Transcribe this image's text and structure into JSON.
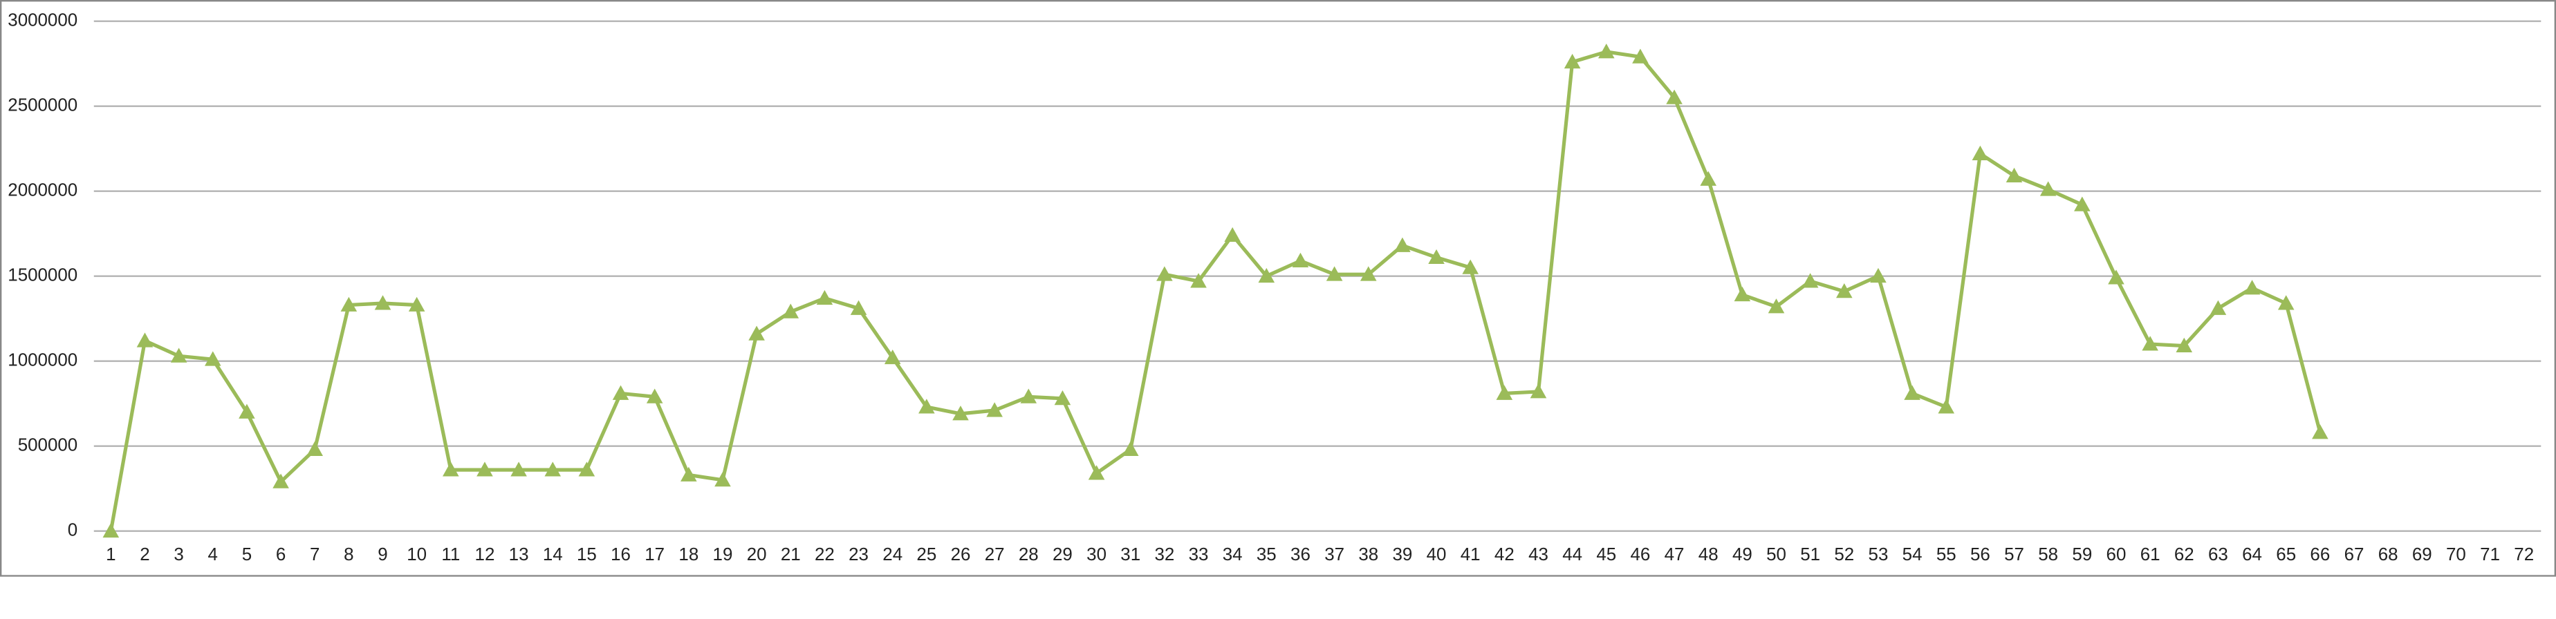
{
  "chart_data": {
    "type": "line",
    "categories": [
      1,
      2,
      3,
      4,
      5,
      6,
      7,
      8,
      9,
      10,
      11,
      12,
      13,
      14,
      15,
      16,
      17,
      18,
      19,
      20,
      21,
      22,
      23,
      24,
      25,
      26,
      27,
      28,
      29,
      30,
      31,
      32,
      33,
      34,
      35,
      36,
      37,
      38,
      39,
      40,
      41,
      42,
      43,
      44,
      45,
      46,
      47,
      48,
      49,
      50,
      51,
      52,
      53,
      54,
      55,
      56,
      57,
      58,
      59,
      60,
      61,
      62,
      63,
      64,
      65,
      66,
      67,
      68,
      69,
      70,
      71,
      72
    ],
    "series": [
      {
        "color": "#9bbb59",
        "values": [
          0,
          1120000,
          1030000,
          1010000,
          700000,
          290000,
          480000,
          1330000,
          1340000,
          1330000,
          360000,
          360000,
          360000,
          360000,
          360000,
          810000,
          790000,
          330000,
          300000,
          1160000,
          1290000,
          1370000,
          1310000,
          1020000,
          730000,
          690000,
          710000,
          790000,
          780000,
          340000,
          480000,
          1510000,
          1470000,
          1740000,
          1500000,
          1590000,
          1510000,
          1510000,
          1680000,
          1610000,
          1550000,
          810000,
          820000,
          2760000,
          2820000,
          2790000,
          2550000,
          2070000,
          1390000,
          1320000,
          1470000,
          1410000,
          1500000,
          810000,
          730000,
          2220000,
          2090000,
          2010000,
          1920000,
          1490000,
          1100000,
          1090000,
          1310000,
          1430000,
          1340000,
          580000,
          null,
          null,
          null,
          null,
          null,
          null
        ]
      }
    ],
    "ylim": [
      0,
      3000000
    ],
    "yticks": [
      0,
      500000,
      1000000,
      1500000,
      2000000,
      2500000,
      3000000
    ],
    "grid": true
  }
}
